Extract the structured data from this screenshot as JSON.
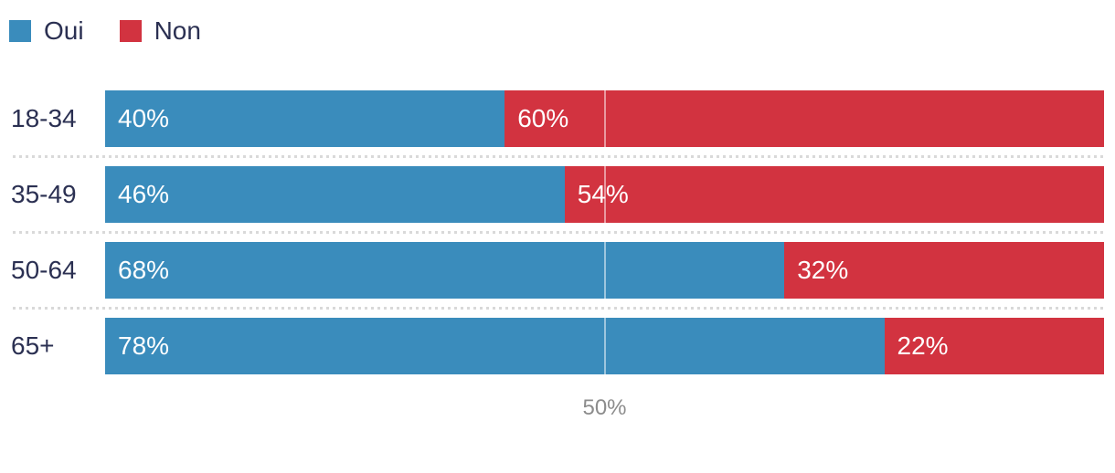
{
  "chart_data": {
    "type": "bar",
    "orientation": "horizontal",
    "stacked": true,
    "categories": [
      "18-34",
      "35-49",
      "50-64",
      "65+"
    ],
    "series": [
      {
        "name": "Oui",
        "color": "#3a8cbc",
        "values": [
          40,
          46,
          68,
          78
        ]
      },
      {
        "name": "Non",
        "color": "#d23340",
        "values": [
          60,
          54,
          32,
          22
        ]
      }
    ],
    "value_suffix": "%",
    "xlim": [
      0,
      100
    ],
    "gridlines": [
      {
        "value": 50,
        "label": "50%"
      }
    ],
    "legend_position": "top-left",
    "value_labels": "inside-start of each segment",
    "colors": {
      "category_text": "#2b3052",
      "value_text": "#ffffff",
      "axis_text": "#8c8c8c",
      "separator": "#d9d9d9",
      "gridline_overlay": "rgba(255,255,255,0.5)",
      "background": "#ffffff"
    }
  }
}
